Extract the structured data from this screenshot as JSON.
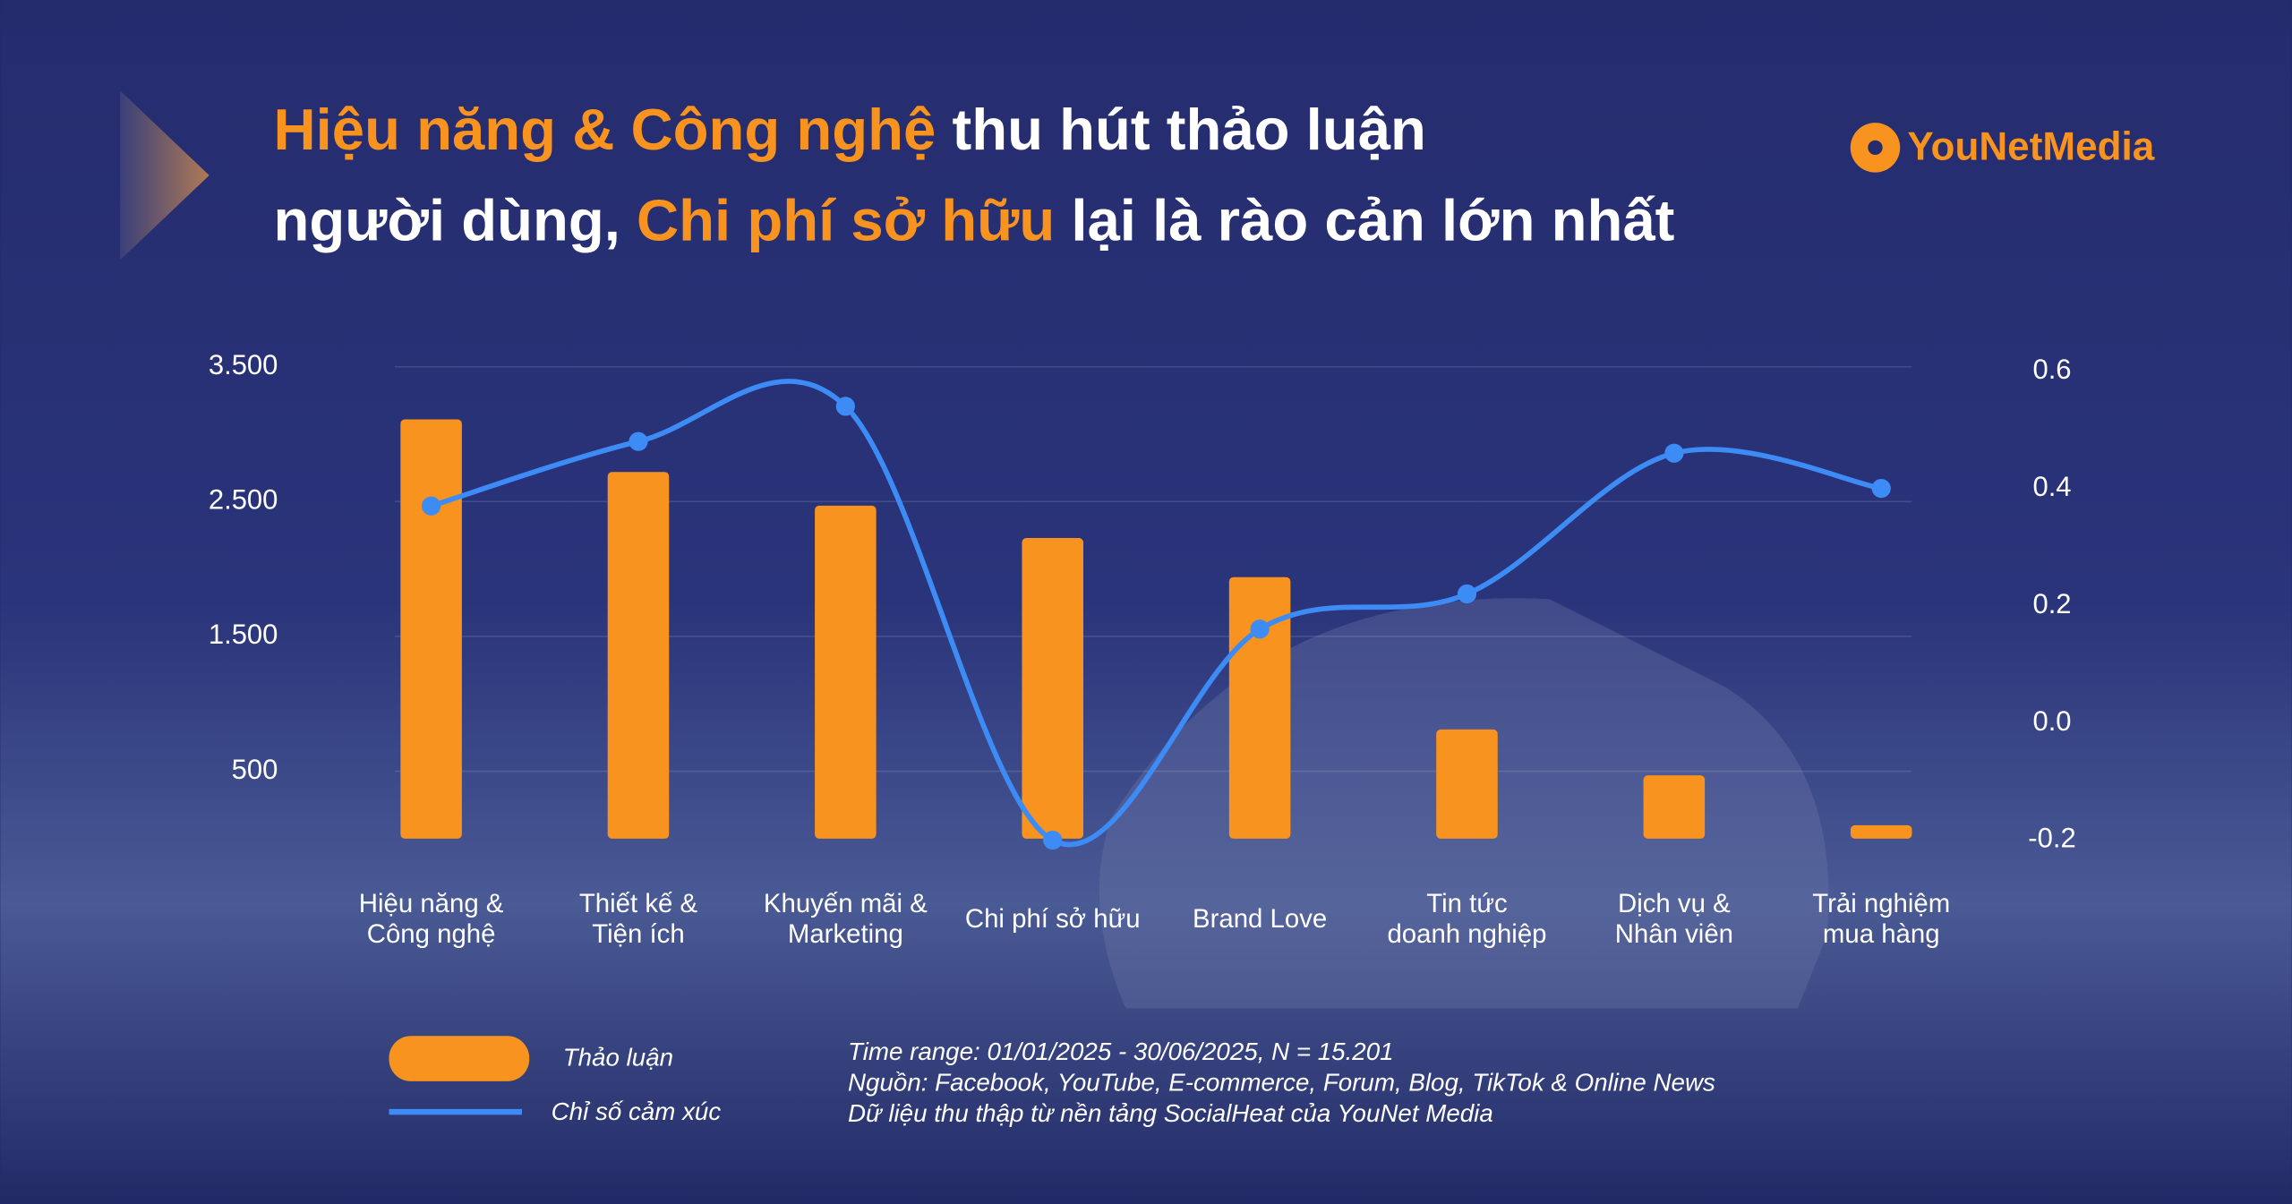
{
  "chart_data": {
    "type": "bar_line",
    "title_lines": [
      [
        {
          "text": "Hiệu năng & Công nghệ",
          "color": "#f7931e"
        },
        {
          "text": " thu hút thảo luận",
          "color": "#ffffff"
        }
      ],
      [
        {
          "text": "người dùng, ",
          "color": "#ffffff"
        },
        {
          "text": "Chi phí sở hữu",
          "color": "#f7931e"
        },
        {
          "text": " lại là rào cản lớn nhất",
          "color": "#ffffff"
        }
      ]
    ],
    "logo": [
      "YouNet",
      "Media"
    ],
    "categories": [
      [
        "Hiệu năng &",
        "Công nghệ"
      ],
      [
        "Thiết kế &",
        "Tiện ích"
      ],
      [
        "Khuyến mãi &",
        "Marketing"
      ],
      [
        "Chi phí sở hữu"
      ],
      [
        "Brand Love"
      ],
      [
        "Tin tức",
        "doanh nghiệp"
      ],
      [
        "Dịch vụ &",
        "Nhân viên"
      ],
      [
        "Trải nghiệm",
        "mua hàng"
      ]
    ],
    "series": [
      {
        "name": "Thảo luận",
        "type": "bar",
        "color": "#f7931e",
        "values": [
          3110,
          2720,
          2470,
          2230,
          1940,
          810,
          470,
          100
        ]
      },
      {
        "name": "Chỉ số cảm xúc",
        "type": "line",
        "axis": "y2",
        "color": "#3d8bf5",
        "values": [
          0.37,
          0.48,
          0.54,
          -0.2,
          0.16,
          0.22,
          0.46,
          0.4
        ]
      }
    ],
    "ylim": [
      0,
      3500
    ],
    "yticks": [
      {
        "value": 500,
        "label": "500"
      },
      {
        "value": 1500,
        "label": "1.500"
      },
      {
        "value": 2500,
        "label": "2.500"
      },
      {
        "value": 3500,
        "label": "3.500"
      }
    ],
    "y2lim": [
      -0.2,
      0.6
    ],
    "y2ticks": [
      -0.2,
      {
        "value": 0,
        "label": "0.0"
      },
      0.2,
      0.4,
      0.6
    ],
    "grid": true,
    "notes": [
      "Time range: 01/01/2025 - 30/06/2025, N = 15.201",
      "Nguồn: Facebook, YouTube, E-commerce, Forum, Blog, TikTok & Online News",
      "Dữ liệu thu thập từ nền tảng SocialHeat của YouNet Media"
    ]
  }
}
